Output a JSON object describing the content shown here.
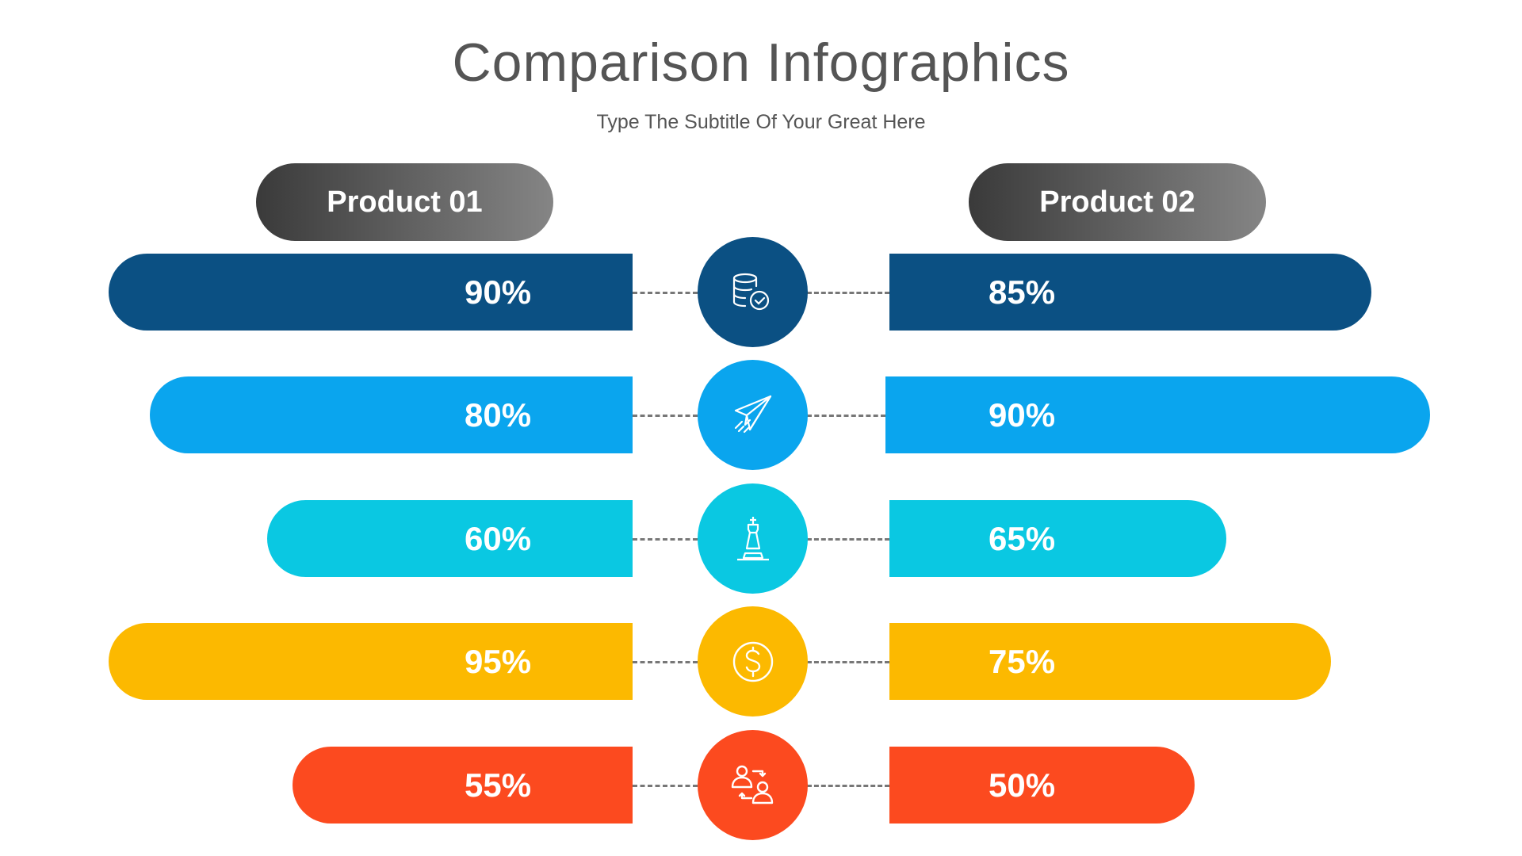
{
  "header": {
    "title": "Comparison Infographics",
    "subtitle": "Type The Subtitle Of Your Great Here"
  },
  "products": [
    "Product 01",
    "Product 02"
  ],
  "rows": [
    {
      "color": "#0b5083",
      "icon": "database-check-icon",
      "left": "90%",
      "right": "85%",
      "left_value": 90,
      "right_value": 85
    },
    {
      "color": "#0aa5ee",
      "icon": "paper-plane-icon",
      "left": "80%",
      "right": "90%",
      "left_value": 80,
      "right_value": 90
    },
    {
      "color": "#0ac8e2",
      "icon": "chess-king-icon",
      "left": "60%",
      "right": "65%",
      "left_value": 60,
      "right_value": 65
    },
    {
      "color": "#fcb900",
      "icon": "dollar-coin-icon",
      "left": "95%",
      "right": "75%",
      "left_value": 95,
      "right_value": 75
    },
    {
      "color": "#fc4a1f",
      "icon": "user-exchange-icon",
      "left": "55%",
      "right": "50%",
      "left_value": 55,
      "right_value": 50
    }
  ]
}
